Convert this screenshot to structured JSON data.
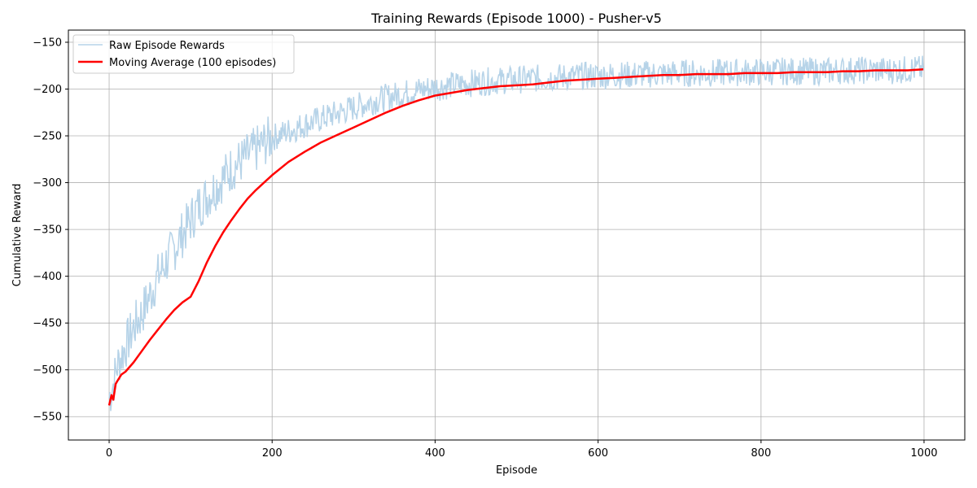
{
  "chart_data": {
    "type": "line",
    "title": "Training Rewards (Episode 1000) - Pusher-v5",
    "xlabel": "Episode",
    "ylabel": "Cumulative Reward",
    "xlim": [
      -50,
      1050
    ],
    "ylim": [
      -575,
      -137
    ],
    "x_ticks": [
      0,
      200,
      400,
      600,
      800,
      1000
    ],
    "y_ticks": [
      -550,
      -500,
      -450,
      -400,
      -350,
      -300,
      -250,
      -200,
      -150
    ],
    "x_tick_labels": [
      "0",
      "200",
      "400",
      "600",
      "800",
      "1000"
    ],
    "y_tick_labels": [
      "−550",
      "−500",
      "−450",
      "−400",
      "−350",
      "−300",
      "−250",
      "−200",
      "−150"
    ],
    "grid": true,
    "legend_position": "top-left",
    "series": [
      {
        "name": "Raw Episode Rewards",
        "color": "#b6d3e8",
        "x": [
          0,
          5,
          10,
          15,
          20,
          25,
          30,
          40,
          50,
          60,
          70,
          80,
          90,
          100,
          110,
          120,
          130,
          140,
          150,
          160,
          170,
          180,
          190,
          200,
          220,
          240,
          260,
          280,
          300,
          320,
          340,
          360,
          380,
          400,
          420,
          440,
          460,
          480,
          500,
          520,
          540,
          560,
          580,
          600,
          620,
          640,
          660,
          680,
          700,
          720,
          740,
          760,
          780,
          800,
          820,
          840,
          860,
          880,
          900,
          920,
          940,
          960,
          980,
          999
        ],
        "y": [
          -530,
          -515,
          -495,
          -485,
          -475,
          -465,
          -455,
          -440,
          -420,
          -400,
          -385,
          -370,
          -355,
          -340,
          -325,
          -315,
          -305,
          -295,
          -285,
          -278,
          -272,
          -265,
          -258,
          -252,
          -245,
          -238,
          -232,
          -226,
          -220,
          -214,
          -209,
          -205,
          -201,
          -198,
          -196,
          -194,
          -192,
          -191,
          -190,
          -189,
          -188,
          -187,
          -186,
          -186,
          -185,
          -185,
          -184,
          -184,
          -183,
          -183,
          -183,
          -182,
          -182,
          -182,
          -181,
          -181,
          -181,
          -181,
          -180,
          -180,
          -180,
          -180,
          -179,
          -179
        ]
      },
      {
        "name": "Moving Average (100 episodes)",
        "color": "#ff0000",
        "x": [
          0,
          3,
          5,
          8,
          10,
          15,
          20,
          30,
          40,
          50,
          60,
          70,
          80,
          90,
          100,
          110,
          120,
          130,
          140,
          150,
          160,
          170,
          180,
          190,
          200,
          220,
          240,
          260,
          280,
          300,
          320,
          340,
          360,
          380,
          400,
          420,
          440,
          460,
          480,
          500,
          520,
          540,
          560,
          580,
          600,
          620,
          640,
          660,
          680,
          700,
          720,
          740,
          760,
          780,
          800,
          820,
          840,
          860,
          880,
          900,
          920,
          940,
          960,
          980,
          999
        ],
        "y": [
          -538,
          -527,
          -532,
          -515,
          -512,
          -505,
          -502,
          -492,
          -480,
          -468,
          -457,
          -446,
          -436,
          -428,
          -422,
          -405,
          -385,
          -368,
          -353,
          -340,
          -328,
          -317,
          -308,
          -300,
          -292,
          -278,
          -267,
          -257,
          -249,
          -241,
          -233,
          -225,
          -218,
          -212,
          -207,
          -204,
          -201,
          -199,
          -197,
          -196,
          -195,
          -193,
          -191,
          -190,
          -189,
          -188,
          -187,
          -186,
          -185,
          -185,
          -184,
          -184,
          -184,
          -183,
          -183,
          -183,
          -182,
          -182,
          -182,
          -181,
          -181,
          -180,
          -180,
          -180,
          -179
        ]
      }
    ]
  }
}
